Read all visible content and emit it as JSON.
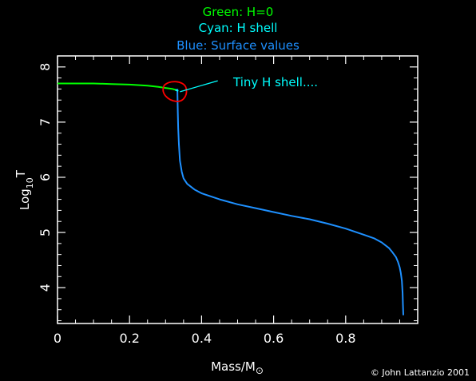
{
  "chart_data": {
    "type": "line",
    "title_lines": [
      {
        "text": "Green: H=0",
        "color": "#00ff00"
      },
      {
        "text": "Cyan: H shell",
        "color": "#00ffff"
      },
      {
        "text": "Blue: Surface values",
        "color": "#1e90ff"
      }
    ],
    "xlabel_base": "Mass/M",
    "xlabel_sub": "⊙",
    "ylabel_base": "Log",
    "ylabel_sub": "10",
    "ylabel_tail": "T",
    "xlim": [
      0,
      1.0
    ],
    "ylim": [
      3.35,
      8.2
    ],
    "xticks": [
      0,
      0.2,
      0.4,
      0.6,
      0.8
    ],
    "xtick_labels": [
      "0",
      "0.2",
      "0.4",
      "0.6",
      "0.8"
    ],
    "yticks": [
      4,
      5,
      6,
      7,
      8
    ],
    "ytick_labels": [
      "4",
      "5",
      "6",
      "7",
      "8"
    ],
    "x_minor_step": 0.05,
    "y_minor_step": 0.2,
    "grid": false,
    "series": [
      {
        "color": "#00ff00",
        "x": [
          0,
          0.05,
          0.1,
          0.15,
          0.2,
          0.25,
          0.28,
          0.3,
          0.32,
          0.33
        ],
        "y": [
          7.7,
          7.7,
          7.7,
          7.69,
          7.68,
          7.66,
          7.64,
          7.62,
          7.6,
          7.58
        ]
      },
      {
        "color": "#00ffff",
        "x": [
          0.327,
          0.33,
          0.333,
          0.335
        ],
        "y": [
          7.58,
          7.58,
          7.57,
          7.56
        ]
      },
      {
        "color": "#1e90ff",
        "x": [
          0.333,
          0.333,
          0.334,
          0.335,
          0.337,
          0.34,
          0.345,
          0.35,
          0.36,
          0.38,
          0.4,
          0.45,
          0.5,
          0.55,
          0.6,
          0.65,
          0.7,
          0.75,
          0.8,
          0.85,
          0.88,
          0.9,
          0.92,
          0.93,
          0.94,
          0.945,
          0.95,
          0.953,
          0.956,
          0.958,
          0.959,
          0.96
        ],
        "y": [
          7.6,
          7.5,
          7.2,
          6.9,
          6.6,
          6.3,
          6.1,
          5.98,
          5.88,
          5.78,
          5.71,
          5.6,
          5.51,
          5.44,
          5.37,
          5.3,
          5.24,
          5.16,
          5.07,
          4.96,
          4.89,
          4.82,
          4.72,
          4.64,
          4.55,
          4.47,
          4.37,
          4.27,
          4.12,
          3.9,
          3.7,
          3.5
        ]
      }
    ],
    "annotation": {
      "text": "Tiny H shell....",
      "color": "#00ffff",
      "circle_color": "#ff0000",
      "circle_center": [
        0.325,
        7.55
      ],
      "line_from": [
        0.34,
        7.55
      ],
      "line_to": [
        0.445,
        7.75
      ]
    },
    "credit": "© John Lattanzio 2001",
    "colors": {
      "background": "#000000",
      "axes": "#ffffff",
      "text": "#ffffff"
    }
  }
}
